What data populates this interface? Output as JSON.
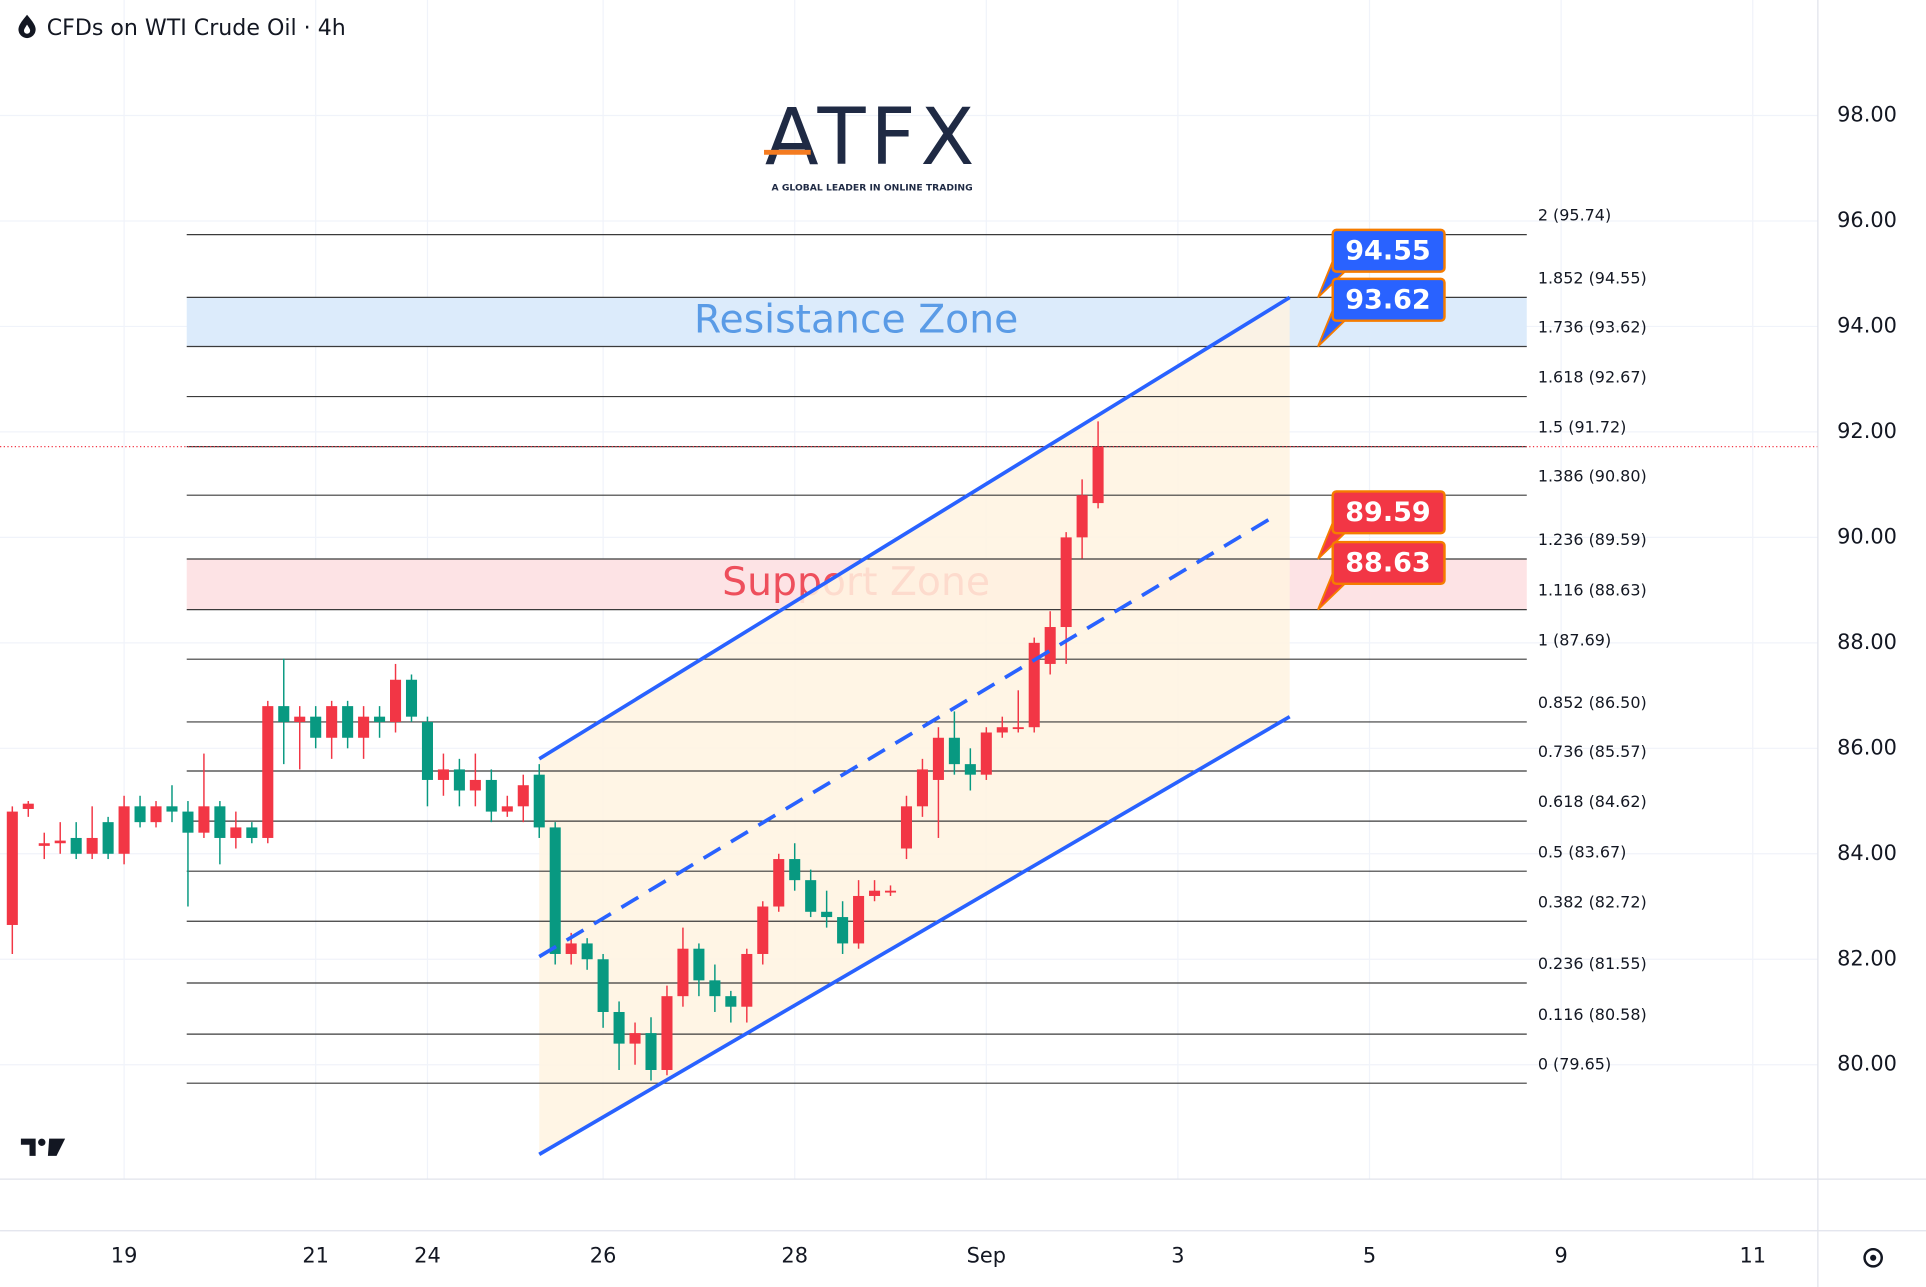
{
  "title": "CFDs on WTI Crude Oil · 4h",
  "logo": {
    "name": "ATFX",
    "tagline": "A GLOBAL LEADER IN ONLINE TRADING"
  },
  "chart_data": {
    "type": "candlestick",
    "up_color": "#f23645",
    "down_color": "#089981",
    "xlim": [
      -0.77,
      113.08
    ],
    "ylim": [
      77.83,
      100.19
    ],
    "xticks": [
      {
        "value": 7,
        "label": "19"
      },
      {
        "value": 19,
        "label": "21"
      },
      {
        "value": 26,
        "label": "24"
      },
      {
        "value": 37,
        "label": "26"
      },
      {
        "value": 49,
        "label": "28"
      },
      {
        "value": 61,
        "label": "Sep"
      },
      {
        "value": 73,
        "label": "3"
      },
      {
        "value": 85,
        "label": "5"
      },
      {
        "value": 97,
        "label": "9"
      },
      {
        "value": 109,
        "label": "11"
      }
    ],
    "yticks": [
      {
        "value": 80,
        "label": "80.00"
      },
      {
        "value": 82,
        "label": "82.00"
      },
      {
        "value": 84,
        "label": "84.00"
      },
      {
        "value": 86,
        "label": "86.00"
      },
      {
        "value": 88,
        "label": "88.00"
      },
      {
        "value": 90,
        "label": "90.00"
      },
      {
        "value": 92,
        "label": "92.00"
      },
      {
        "value": 94,
        "label": "94.00"
      },
      {
        "value": 96,
        "label": "96.00"
      },
      {
        "value": 98,
        "label": "98.00"
      }
    ],
    "grid": true,
    "open": [
      82.65,
      84.85,
      84.15,
      84.2,
      84.3,
      84.0,
      84.6,
      84.0,
      84.9,
      84.6,
      84.9,
      84.8,
      84.4,
      84.9,
      84.3,
      84.5,
      84.3,
      86.8,
      86.5,
      86.6,
      86.2,
      86.8,
      86.2,
      86.6,
      86.5,
      87.3,
      86.5,
      85.4,
      85.6,
      85.2,
      85.4,
      84.8,
      84.9,
      85.5,
      84.5,
      82.1,
      82.3,
      82.0,
      81.0,
      80.4,
      80.6,
      79.9,
      81.3,
      82.2,
      81.6,
      81.3,
      81.1,
      82.1,
      83.0,
      83.9,
      83.5,
      82.9,
      82.8,
      82.3,
      83.2,
      83.3,
      84.1,
      84.9,
      85.4,
      86.2,
      85.7,
      85.5,
      86.3,
      86.4,
      86.4,
      87.6,
      88.3,
      90.0,
      90.65
    ],
    "high": [
      84.9,
      85.0,
      84.4,
      84.6,
      84.6,
      84.9,
      84.7,
      85.1,
      85.1,
      85.0,
      85.3,
      85.0,
      85.9,
      85.0,
      84.8,
      84.6,
      86.9,
      87.7,
      86.8,
      86.8,
      86.9,
      86.9,
      86.8,
      86.8,
      87.6,
      87.4,
      86.6,
      85.9,
      85.8,
      85.9,
      85.6,
      85.1,
      85.5,
      85.7,
      84.6,
      82.5,
      82.4,
      82.1,
      81.2,
      80.8,
      80.9,
      81.5,
      82.6,
      82.3,
      81.9,
      81.4,
      82.2,
      83.1,
      84.0,
      84.2,
      83.7,
      83.3,
      83.1,
      83.5,
      83.5,
      83.4,
      85.1,
      85.8,
      86.4,
      86.7,
      86.0,
      86.4,
      86.6,
      87.1,
      88.1,
      88.6,
      90.1,
      91.1,
      92.2
    ],
    "low": [
      82.1,
      84.7,
      83.9,
      84.0,
      83.9,
      83.9,
      83.9,
      83.8,
      84.5,
      84.5,
      84.6,
      83.0,
      84.3,
      83.8,
      84.1,
      84.2,
      84.2,
      85.7,
      85.6,
      86.0,
      85.8,
      86.0,
      85.8,
      86.2,
      86.3,
      86.5,
      84.9,
      85.1,
      84.9,
      84.9,
      84.6,
      84.7,
      84.6,
      84.3,
      81.9,
      81.9,
      81.8,
      80.7,
      79.9,
      80.0,
      79.7,
      79.8,
      81.1,
      81.3,
      81.0,
      80.8,
      80.8,
      81.9,
      82.9,
      83.3,
      82.8,
      82.6,
      82.1,
      82.2,
      83.1,
      83.2,
      83.9,
      84.7,
      84.3,
      85.5,
      85.2,
      85.4,
      86.2,
      86.3,
      86.3,
      87.4,
      87.6,
      89.6,
      90.55
    ],
    "close": [
      84.8,
      84.95,
      84.2,
      84.25,
      84.0,
      84.3,
      84.0,
      84.9,
      84.6,
      84.9,
      84.8,
      84.4,
      84.9,
      84.3,
      84.5,
      84.3,
      86.8,
      86.5,
      86.6,
      86.2,
      86.8,
      86.2,
      86.6,
      86.5,
      87.3,
      86.6,
      85.4,
      85.6,
      85.2,
      85.4,
      84.8,
      84.9,
      85.3,
      84.5,
      82.1,
      82.3,
      82.0,
      81.0,
      80.4,
      80.6,
      79.9,
      81.3,
      82.2,
      81.6,
      81.3,
      81.1,
      82.1,
      83.0,
      83.9,
      83.5,
      82.9,
      82.8,
      82.3,
      83.2,
      83.3,
      83.3,
      84.9,
      85.6,
      86.2,
      85.7,
      85.5,
      86.3,
      86.4,
      86.4,
      88.0,
      88.3,
      90.0,
      90.8,
      91.72
    ],
    "fib_levels": [
      {
        "value": 95.74,
        "label": "2 (95.74)"
      },
      {
        "value": 94.55,
        "label": "1.852 (94.55)"
      },
      {
        "value": 93.62,
        "label": "1.736 (93.62)"
      },
      {
        "value": 92.67,
        "label": "1.618 (92.67)"
      },
      {
        "value": 91.72,
        "label": "1.5 (91.72)"
      },
      {
        "value": 90.8,
        "label": "1.386 (90.80)"
      },
      {
        "value": 89.59,
        "label": "1.236 (89.59)"
      },
      {
        "value": 88.63,
        "label": "1.116 (88.63)"
      },
      {
        "value": 87.69,
        "label": "1 (87.69)"
      },
      {
        "value": 86.5,
        "label": "0.852 (86.50)"
      },
      {
        "value": 85.57,
        "label": "0.736 (85.57)"
      },
      {
        "value": 84.62,
        "label": "0.618 (84.62)"
      },
      {
        "value": 83.67,
        "label": "0.5 (83.67)"
      },
      {
        "value": 82.72,
        "label": "0.382 (82.72)"
      },
      {
        "value": 81.55,
        "label": "0.236 (81.55)"
      },
      {
        "value": 80.58,
        "label": "0.116 (80.58)"
      },
      {
        "value": 79.65,
        "label": "0 (79.65)"
      }
    ],
    "zones": [
      {
        "label": "Resistance Zone",
        "high": 94.55,
        "low": 93.62,
        "fill": "#dcebfb",
        "text_color": "#5a9be6",
        "tag_color": "#2962ff"
      },
      {
        "label": "Support Zone",
        "high": 89.59,
        "low": 88.63,
        "fill": "#fde3e5",
        "text_color": "#ee4f5c",
        "tag_color": "#f23645"
      }
    ],
    "channel": {
      "color": "#2962ff",
      "fill": "#fff3e0",
      "x": [
        33,
        80
      ],
      "upper": [
        85.8,
        94.55
      ],
      "lower": [
        78.3,
        86.6
      ]
    }
  }
}
